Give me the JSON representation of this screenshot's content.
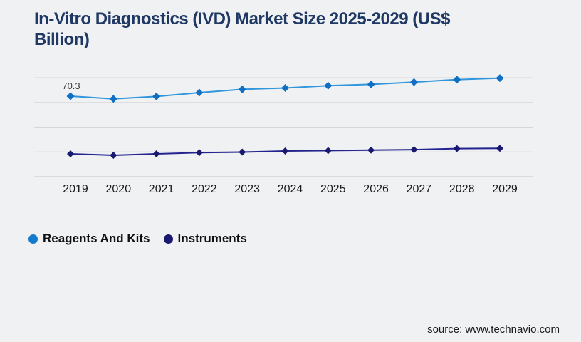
{
  "title": {
    "line1": "In-Vitro Diagnostics (IVD) Market Size 2025-2029 (US$",
    "line2": "Billion)"
  },
  "source": "source: www.technavio.com",
  "legend": [
    {
      "label": "Reagents And Kits",
      "color": "#147acc"
    },
    {
      "label": "Instruments",
      "color": "#191970"
    }
  ],
  "colors": {
    "background": "#f0f1f3",
    "title": "#1f3864",
    "grid": "#d7d7db",
    "axis": "#c6c6cb",
    "tick": "#1a1a1a",
    "data_label": "#3c3c3c",
    "legend_text": "#111111",
    "source": "#1c1c1c"
  },
  "chart_data": {
    "type": "line",
    "title": "In-Vitro Diagnostics (IVD) Market Size 2025-2029 (US$ Billion)",
    "x": [
      "2019",
      "2020",
      "2021",
      "2022",
      "2023",
      "2024",
      "2025",
      "2026",
      "2027",
      "2028",
      "2029"
    ],
    "series": [
      {
        "name": "Reagents And Kits",
        "values": [
          70.3,
          68.0,
          70.1,
          73.4,
          76.3,
          77.5,
          79.5,
          80.7,
          82.6,
          84.8,
          86.1
        ],
        "line_color": "#2f96dc",
        "marker_color": "#0f6fc4",
        "marker": "diamond"
      },
      {
        "name": "Instruments",
        "values": [
          19.9,
          18.7,
          19.9,
          21.0,
          21.5,
          22.4,
          22.8,
          23.2,
          23.6,
          24.5,
          24.7
        ],
        "line_color": "#23238f",
        "marker_color": "#191970",
        "marker": "diamond"
      }
    ],
    "data_labels": [
      {
        "series": 0,
        "x": "2019",
        "text": "70.3"
      }
    ],
    "xlabel": "",
    "ylabel": "",
    "ylim": [
      0,
      87
    ],
    "grid": "horizontal",
    "gridline_count": 5,
    "legend_position": "bottom-left"
  }
}
